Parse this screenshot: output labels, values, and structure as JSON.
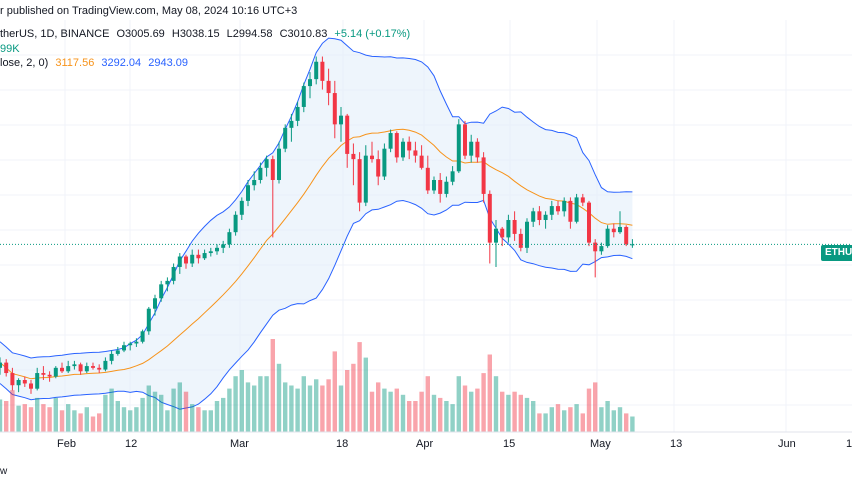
{
  "header": {
    "published": "r published on TradingView.com, May 08, 2024 10:16 UTC+3",
    "symbol": "therUS, 1D, BINANCE",
    "ohlc": {
      "o": "O3005.69",
      "h": "H3038.15",
      "l": "L2994.58",
      "c": "C3010.83",
      "chg": "+5.14 (+0.17%)"
    },
    "volume_fragment": "99K",
    "bb_label": "lose, 2, 0)",
    "bb_values": [
      "3117.56",
      "3292.04",
      "2943.09"
    ]
  },
  "price_tag": "ETHU",
  "footer_fragment": "w",
  "colors": {
    "up": "#089981",
    "down": "#f23645",
    "band": "#2962ff",
    "basis": "#f7931a",
    "band_fill": "#e3effa"
  },
  "chart_data": {
    "type": "candlestick",
    "x_tick_labels": [
      "Feb",
      "12",
      "Mar",
      "18",
      "Apr",
      "15",
      "May",
      "13",
      "Jun",
      "1"
    ],
    "candles": [
      [
        2300,
        2360,
        2260,
        2330
      ],
      [
        2330,
        2350,
        2250,
        2270
      ],
      [
        2270,
        2300,
        2170,
        2200
      ],
      [
        2200,
        2240,
        2160,
        2230
      ],
      [
        2230,
        2250,
        2190,
        2210
      ],
      [
        2210,
        2230,
        2150,
        2180
      ],
      [
        2180,
        2300,
        2170,
        2270
      ],
      [
        2270,
        2310,
        2230,
        2260
      ],
      [
        2260,
        2280,
        2220,
        2250
      ],
      [
        2250,
        2310,
        2240,
        2300
      ],
      [
        2300,
        2330,
        2270,
        2280
      ],
      [
        2280,
        2340,
        2270,
        2310
      ],
      [
        2310,
        2340,
        2290,
        2320
      ],
      [
        2320,
        2330,
        2260,
        2280
      ],
      [
        2280,
        2330,
        2270,
        2310
      ],
      [
        2310,
        2330,
        2290,
        2300
      ],
      [
        2300,
        2320,
        2270,
        2290
      ],
      [
        2290,
        2360,
        2280,
        2340
      ],
      [
        2340,
        2400,
        2320,
        2380
      ],
      [
        2380,
        2420,
        2370,
        2400
      ],
      [
        2400,
        2450,
        2390,
        2430
      ],
      [
        2430,
        2450,
        2400,
        2440
      ],
      [
        2440,
        2470,
        2420,
        2450
      ],
      [
        2450,
        2520,
        2440,
        2510
      ],
      [
        2510,
        2650,
        2490,
        2640
      ],
      [
        2640,
        2720,
        2600,
        2700
      ],
      [
        2700,
        2800,
        2680,
        2780
      ],
      [
        2780,
        2820,
        2740,
        2800
      ],
      [
        2800,
        2900,
        2780,
        2880
      ],
      [
        2880,
        2960,
        2840,
        2940
      ],
      [
        2940,
        2950,
        2870,
        2900
      ],
      [
        2900,
        2980,
        2880,
        2950
      ],
      [
        2950,
        2980,
        2900,
        2930
      ],
      [
        2930,
        2980,
        2920,
        2960
      ],
      [
        2960,
        2990,
        2940,
        2970
      ],
      [
        2970,
        3010,
        2950,
        2990
      ],
      [
        2990,
        3030,
        2960,
        3010
      ],
      [
        3010,
        3100,
        2990,
        3080
      ],
      [
        3080,
        3200,
        3060,
        3180
      ],
      [
        3180,
        3280,
        3150,
        3260
      ],
      [
        3260,
        3380,
        3230,
        3350
      ],
      [
        3350,
        3430,
        3320,
        3380
      ],
      [
        3380,
        3480,
        3360,
        3450
      ],
      [
        3450,
        3520,
        3400,
        3500
      ],
      [
        3500,
        3520,
        3050,
        3380
      ],
      [
        3380,
        3600,
        3360,
        3560
      ],
      [
        3560,
        3700,
        3540,
        3680
      ],
      [
        3680,
        3760,
        3600,
        3720
      ],
      [
        3720,
        3830,
        3690,
        3800
      ],
      [
        3800,
        3940,
        3770,
        3920
      ],
      [
        3920,
        4000,
        3850,
        3960
      ],
      [
        3960,
        4090,
        3930,
        4060
      ],
      [
        4060,
        4090,
        3900,
        3950
      ],
      [
        3950,
        4020,
        3810,
        3880
      ],
      [
        3880,
        3950,
        3620,
        3700
      ],
      [
        3700,
        3800,
        3600,
        3750
      ],
      [
        3750,
        3760,
        3450,
        3530
      ],
      [
        3530,
        3590,
        3350,
        3500
      ],
      [
        3500,
        3540,
        3200,
        3250
      ],
      [
        3250,
        3580,
        3230,
        3520
      ],
      [
        3520,
        3600,
        3480,
        3500
      ],
      [
        3500,
        3550,
        3350,
        3400
      ],
      [
        3400,
        3590,
        3380,
        3560
      ],
      [
        3560,
        3670,
        3540,
        3650
      ],
      [
        3650,
        3660,
        3480,
        3510
      ],
      [
        3510,
        3620,
        3490,
        3600
      ],
      [
        3600,
        3630,
        3500,
        3550
      ],
      [
        3550,
        3600,
        3480,
        3520
      ],
      [
        3520,
        3580,
        3440,
        3450
      ],
      [
        3450,
        3520,
        3300,
        3320
      ],
      [
        3320,
        3400,
        3300,
        3380
      ],
      [
        3380,
        3420,
        3250,
        3300
      ],
      [
        3300,
        3400,
        3280,
        3370
      ],
      [
        3370,
        3460,
        3350,
        3430
      ],
      [
        3430,
        3730,
        3420,
        3700
      ],
      [
        3700,
        3720,
        3500,
        3520
      ],
      [
        3520,
        3640,
        3480,
        3600
      ],
      [
        3600,
        3620,
        3480,
        3510
      ],
      [
        3510,
        3540,
        3250,
        3300
      ],
      [
        3300,
        3320,
        2900,
        3020
      ],
      [
        3020,
        3150,
        2880,
        3100
      ],
      [
        3100,
        3110,
        3000,
        3050
      ],
      [
        3050,
        3180,
        3020,
        3150
      ],
      [
        3150,
        3200,
        3030,
        3070
      ],
      [
        3070,
        3100,
        2970,
        2990
      ],
      [
        2990,
        3160,
        2960,
        3140
      ],
      [
        3140,
        3220,
        3110,
        3200
      ],
      [
        3200,
        3230,
        3120,
        3150
      ],
      [
        3150,
        3200,
        3100,
        3180
      ],
      [
        3180,
        3260,
        3150,
        3230
      ],
      [
        3230,
        3260,
        3180,
        3200
      ],
      [
        3200,
        3280,
        3170,
        3260
      ],
      [
        3260,
        3280,
        3100,
        3140
      ],
      [
        3140,
        3300,
        3130,
        3280
      ],
      [
        3280,
        3300,
        3230,
        3250
      ],
      [
        3250,
        3260,
        3000,
        3020
      ],
      [
        3020,
        3040,
        2820,
        2970
      ],
      [
        2970,
        3020,
        2950,
        3000
      ],
      [
        3000,
        3120,
        2990,
        3100
      ],
      [
        3100,
        3130,
        3050,
        3080
      ],
      [
        3080,
        3200,
        3070,
        3110
      ],
      [
        3110,
        3120,
        3000,
        3010
      ],
      [
        3010,
        3040,
        2990,
        3010
      ]
    ],
    "volume": [
      [
        1.05,
        1
      ],
      [
        1.0,
        0
      ],
      [
        1.35,
        0
      ],
      [
        0.85,
        1
      ],
      [
        0.9,
        0
      ],
      [
        0.8,
        0
      ],
      [
        1.1,
        1
      ],
      [
        0.9,
        0
      ],
      [
        0.8,
        0
      ],
      [
        1.1,
        1
      ],
      [
        0.7,
        0
      ],
      [
        0.9,
        1
      ],
      [
        0.7,
        1
      ],
      [
        0.6,
        0
      ],
      [
        0.8,
        1
      ],
      [
        0.5,
        0
      ],
      [
        0.6,
        0
      ],
      [
        1.2,
        1
      ],
      [
        1.4,
        1
      ],
      [
        1.0,
        1
      ],
      [
        0.8,
        1
      ],
      [
        0.7,
        1
      ],
      [
        0.8,
        1
      ],
      [
        1.1,
        1
      ],
      [
        1.5,
        1
      ],
      [
        1.3,
        1
      ],
      [
        1.2,
        1
      ],
      [
        0.7,
        1
      ],
      [
        1.4,
        1
      ],
      [
        1.6,
        1
      ],
      [
        1.3,
        0
      ],
      [
        0.9,
        1
      ],
      [
        0.8,
        0
      ],
      [
        0.7,
        1
      ],
      [
        0.7,
        1
      ],
      [
        1.0,
        1
      ],
      [
        1.1,
        1
      ],
      [
        1.4,
        1
      ],
      [
        1.8,
        1
      ],
      [
        2.0,
        1
      ],
      [
        1.6,
        1
      ],
      [
        1.5,
        1
      ],
      [
        1.8,
        1
      ],
      [
        1.8,
        1
      ],
      [
        3.0,
        0
      ],
      [
        2.2,
        1
      ],
      [
        1.6,
        1
      ],
      [
        1.5,
        1
      ],
      [
        1.4,
        1
      ],
      [
        1.8,
        1
      ],
      [
        1.5,
        1
      ],
      [
        1.7,
        1
      ],
      [
        1.5,
        0
      ],
      [
        1.7,
        0
      ],
      [
        2.6,
        0
      ],
      [
        1.5,
        1
      ],
      [
        2.0,
        0
      ],
      [
        2.2,
        0
      ],
      [
        2.9,
        0
      ],
      [
        2.4,
        1
      ],
      [
        1.3,
        0
      ],
      [
        1.6,
        0
      ],
      [
        1.4,
        1
      ],
      [
        1.3,
        1
      ],
      [
        1.4,
        0
      ],
      [
        1.2,
        1
      ],
      [
        1.0,
        0
      ],
      [
        1.0,
        0
      ],
      [
        1.3,
        0
      ],
      [
        1.8,
        0
      ],
      [
        1.2,
        1
      ],
      [
        1.1,
        0
      ],
      [
        1.0,
        1
      ],
      [
        0.9,
        1
      ],
      [
        1.8,
        1
      ],
      [
        1.5,
        0
      ],
      [
        1.3,
        1
      ],
      [
        1.4,
        0
      ],
      [
        1.9,
        0
      ],
      [
        2.5,
        0
      ],
      [
        1.8,
        1
      ],
      [
        1.3,
        0
      ],
      [
        1.2,
        1
      ],
      [
        1.3,
        0
      ],
      [
        1.2,
        0
      ],
      [
        1.1,
        1
      ],
      [
        1.0,
        1
      ],
      [
        0.6,
        0
      ],
      [
        0.6,
        1
      ],
      [
        0.8,
        1
      ],
      [
        0.9,
        0
      ],
      [
        0.7,
        1
      ],
      [
        0.8,
        0
      ],
      [
        0.9,
        1
      ],
      [
        0.6,
        0
      ],
      [
        1.4,
        0
      ],
      [
        1.6,
        0
      ],
      [
        0.8,
        1
      ],
      [
        1.0,
        1
      ],
      [
        0.7,
        1
      ],
      [
        0.8,
        1
      ],
      [
        0.6,
        0
      ],
      [
        0.5,
        1
      ]
    ],
    "bollinger": {
      "length": 20,
      "mult": 2
    },
    "ylim": [
      2000,
      4300
    ],
    "grid": true
  }
}
